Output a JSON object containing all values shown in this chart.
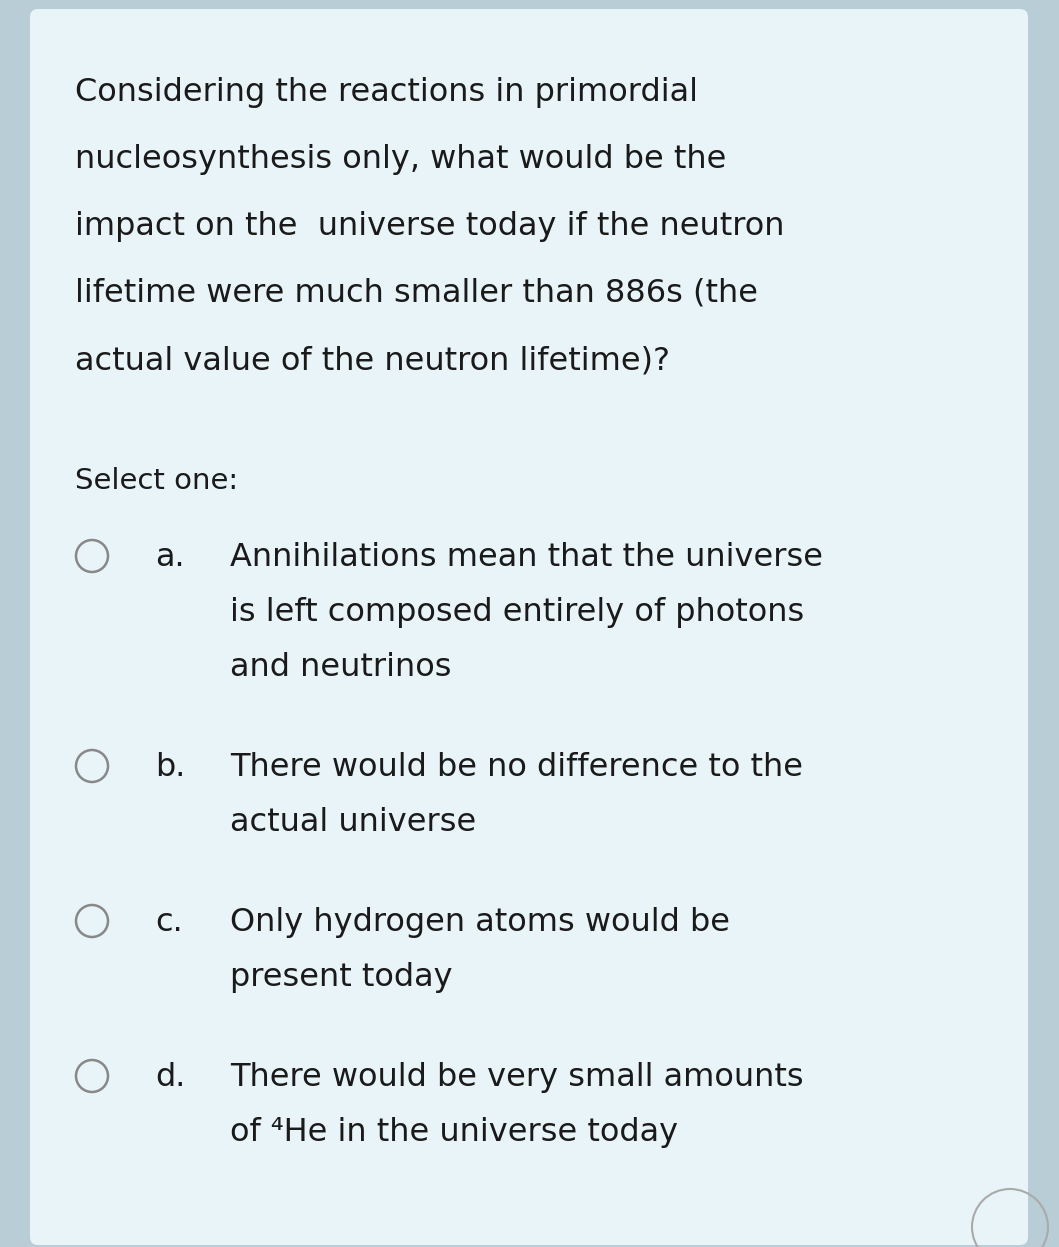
{
  "bg_color": "#e8f4f8",
  "outer_bg": "#b8cdd6",
  "card_bg": "#e8f4f8",
  "text_color": "#1a1a1a",
  "question_lines": [
    "Considering the reactions in primordial",
    "nucleosynthesis only, what would be the",
    "impact on the  universe today if the neutron",
    "lifetime were much smaller than 886s (the",
    "actual value of the neutron lifetime)?"
  ],
  "select_label": "Select one:",
  "options": [
    {
      "label": "a.",
      "lines": [
        "Annihilations mean that the universe",
        "is left composed entirely of photons",
        "and neutrinos"
      ]
    },
    {
      "label": "b.",
      "lines": [
        "There would be no difference to the",
        "actual universe"
      ]
    },
    {
      "label": "c.",
      "lines": [
        "Only hydrogen atoms would be",
        "present today"
      ]
    },
    {
      "label": "d.",
      "lines": [
        "There would be very small amounts",
        "of ⁴He in the universe today"
      ]
    }
  ],
  "font_size_question": 23,
  "font_size_options": 23,
  "font_size_select": 21,
  "circle_color": "#888888",
  "font_family": "DejaVu Sans"
}
